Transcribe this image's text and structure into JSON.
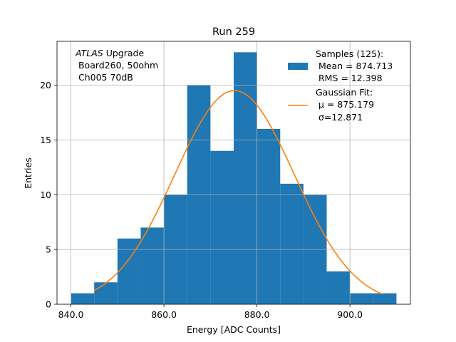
{
  "chart_data": {
    "type": "histogram",
    "title": "Run 259",
    "xlabel": "Energy [ADC Counts]",
    "ylabel": "Entries",
    "xlim": [
      837,
      913
    ],
    "ylim": [
      0,
      24
    ],
    "grid": true,
    "x_ticks": [
      840,
      860,
      880,
      900
    ],
    "x_tick_labels": [
      "840.0",
      "860.0",
      "880.0",
      "900.0"
    ],
    "y_ticks": [
      0,
      5,
      10,
      15,
      20
    ],
    "y_tick_labels": [
      "0",
      "5",
      "10",
      "15",
      "20"
    ],
    "bin_edges": [
      840,
      845,
      850,
      855,
      860,
      865,
      870,
      875,
      880,
      885,
      890,
      895,
      900,
      905,
      910
    ],
    "counts": [
      1,
      2,
      6,
      7,
      10,
      20,
      14,
      23,
      16,
      11,
      10,
      3,
      1,
      1
    ],
    "bar_color": "#1f77b4",
    "fit_color": "#ff7f0e",
    "fit": {
      "name": "Gaussian Fit",
      "mu": 875.179,
      "sigma": 12.871,
      "amplitude": 19.5,
      "x_range": [
        845,
        907
      ]
    },
    "annotation": {
      "line1_italic": "ATLAS",
      "line1_rest": " Upgrade",
      "line2": " Board260, 50ohm",
      "line3": " Ch005 70dB"
    },
    "legend": {
      "position": "top-right",
      "samples": {
        "line1": "Samples (125):",
        "line2": " Mean = 874.713",
        "line3": " RMS = 12.398"
      },
      "fit": {
        "line1": "Gaussian Fit:",
        "line2_mu": " μ = 875.179",
        "line3_sigma": " σ=12.871"
      }
    }
  }
}
